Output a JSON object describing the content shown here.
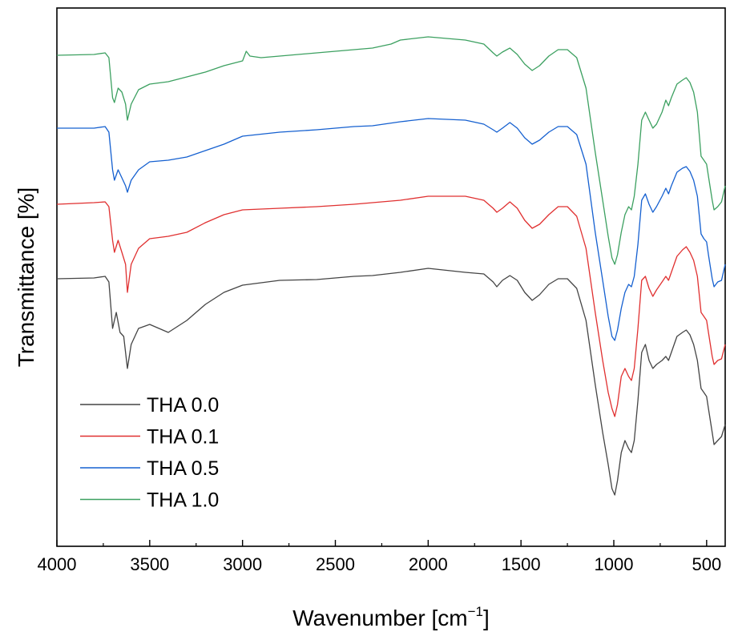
{
  "chart_data": {
    "type": "line",
    "title": "",
    "xlabel": "Wavenumber [cm",
    "xlabel_sup": "−1",
    "xlabel_end": "]",
    "ylabel": "Transmittance [%]",
    "xlim": [
      4000,
      400
    ],
    "x_reversed": true,
    "y_ticks_shown": false,
    "xticks": [
      4000,
      3500,
      3000,
      2500,
      2000,
      1500,
      1000,
      500
    ],
    "legend_position": "bottom-left",
    "grid": false,
    "series": [
      {
        "name": "THA 0.0",
        "color": "#444444",
        "points": [
          [
            4000,
            348
          ],
          [
            3800,
            347
          ],
          [
            3740,
            345
          ],
          [
            3720,
            352
          ],
          [
            3700,
            410
          ],
          [
            3680,
            390
          ],
          [
            3660,
            415
          ],
          [
            3640,
            420
          ],
          [
            3620,
            460
          ],
          [
            3600,
            430
          ],
          [
            3560,
            410
          ],
          [
            3500,
            405
          ],
          [
            3450,
            410
          ],
          [
            3400,
            415
          ],
          [
            3300,
            400
          ],
          [
            3200,
            380
          ],
          [
            3100,
            365
          ],
          [
            3000,
            356
          ],
          [
            2800,
            350
          ],
          [
            2600,
            349
          ],
          [
            2400,
            345
          ],
          [
            2300,
            344
          ],
          [
            2150,
            340
          ],
          [
            2000,
            335
          ],
          [
            1800,
            340
          ],
          [
            1700,
            342
          ],
          [
            1650,
            352
          ],
          [
            1630,
            358
          ],
          [
            1600,
            350
          ],
          [
            1560,
            344
          ],
          [
            1520,
            350
          ],
          [
            1480,
            365
          ],
          [
            1440,
            375
          ],
          [
            1400,
            368
          ],
          [
            1350,
            355
          ],
          [
            1300,
            348
          ],
          [
            1250,
            348
          ],
          [
            1200,
            360
          ],
          [
            1150,
            400
          ],
          [
            1100,
            480
          ],
          [
            1060,
            540
          ],
          [
            1030,
            580
          ],
          [
            1010,
            610
          ],
          [
            995,
            618
          ],
          [
            980,
            600
          ],
          [
            960,
            565
          ],
          [
            940,
            550
          ],
          [
            920,
            560
          ],
          [
            905,
            565
          ],
          [
            890,
            550
          ],
          [
            870,
            500
          ],
          [
            850,
            440
          ],
          [
            830,
            430
          ],
          [
            810,
            450
          ],
          [
            790,
            460
          ],
          [
            770,
            455
          ],
          [
            740,
            450
          ],
          [
            720,
            445
          ],
          [
            705,
            450
          ],
          [
            690,
            440
          ],
          [
            660,
            420
          ],
          [
            630,
            415
          ],
          [
            610,
            412
          ],
          [
            590,
            418
          ],
          [
            570,
            430
          ],
          [
            550,
            450
          ],
          [
            530,
            485
          ],
          [
            515,
            490
          ],
          [
            500,
            495
          ],
          [
            490,
            510
          ],
          [
            470,
            540
          ],
          [
            460,
            555
          ],
          [
            440,
            550
          ],
          [
            420,
            545
          ],
          [
            400,
            530
          ]
        ]
      },
      {
        "name": "THA 0.1",
        "color": "#e03030",
        "points": [
          [
            4000,
            255
          ],
          [
            3800,
            253
          ],
          [
            3740,
            252
          ],
          [
            3720,
            258
          ],
          [
            3700,
            300
          ],
          [
            3690,
            315
          ],
          [
            3670,
            300
          ],
          [
            3650,
            315
          ],
          [
            3630,
            330
          ],
          [
            3620,
            365
          ],
          [
            3600,
            330
          ],
          [
            3560,
            310
          ],
          [
            3500,
            298
          ],
          [
            3400,
            295
          ],
          [
            3300,
            290
          ],
          [
            3200,
            278
          ],
          [
            3100,
            268
          ],
          [
            3000,
            262
          ],
          [
            2800,
            260
          ],
          [
            2600,
            258
          ],
          [
            2400,
            255
          ],
          [
            2300,
            253
          ],
          [
            2150,
            250
          ],
          [
            2000,
            245
          ],
          [
            1800,
            245
          ],
          [
            1700,
            250
          ],
          [
            1650,
            260
          ],
          [
            1630,
            265
          ],
          [
            1600,
            260
          ],
          [
            1560,
            252
          ],
          [
            1520,
            260
          ],
          [
            1480,
            275
          ],
          [
            1440,
            285
          ],
          [
            1400,
            280
          ],
          [
            1350,
            268
          ],
          [
            1300,
            258
          ],
          [
            1250,
            258
          ],
          [
            1200,
            270
          ],
          [
            1150,
            310
          ],
          [
            1100,
            390
          ],
          [
            1060,
            450
          ],
          [
            1030,
            490
          ],
          [
            1010,
            510
          ],
          [
            995,
            520
          ],
          [
            980,
            505
          ],
          [
            960,
            470
          ],
          [
            940,
            460
          ],
          [
            920,
            470
          ],
          [
            905,
            475
          ],
          [
            890,
            460
          ],
          [
            870,
            410
          ],
          [
            850,
            350
          ],
          [
            830,
            345
          ],
          [
            810,
            360
          ],
          [
            790,
            370
          ],
          [
            770,
            362
          ],
          [
            740,
            352
          ],
          [
            720,
            345
          ],
          [
            705,
            350
          ],
          [
            690,
            340
          ],
          [
            660,
            320
          ],
          [
            630,
            312
          ],
          [
            610,
            308
          ],
          [
            590,
            315
          ],
          [
            570,
            325
          ],
          [
            550,
            345
          ],
          [
            530,
            390
          ],
          [
            515,
            395
          ],
          [
            500,
            400
          ],
          [
            490,
            415
          ],
          [
            470,
            445
          ],
          [
            460,
            455
          ],
          [
            440,
            450
          ],
          [
            420,
            448
          ],
          [
            400,
            430
          ]
        ]
      },
      {
        "name": "THA 0.5",
        "color": "#1560d0",
        "points": [
          [
            4000,
            160
          ],
          [
            3800,
            160
          ],
          [
            3740,
            158
          ],
          [
            3720,
            165
          ],
          [
            3700,
            212
          ],
          [
            3690,
            225
          ],
          [
            3670,
            212
          ],
          [
            3650,
            222
          ],
          [
            3630,
            232
          ],
          [
            3620,
            240
          ],
          [
            3600,
            225
          ],
          [
            3560,
            212
          ],
          [
            3500,
            202
          ],
          [
            3400,
            200
          ],
          [
            3300,
            196
          ],
          [
            3200,
            188
          ],
          [
            3100,
            180
          ],
          [
            3000,
            170
          ],
          [
            2800,
            165
          ],
          [
            2600,
            162
          ],
          [
            2400,
            158
          ],
          [
            2300,
            157
          ],
          [
            2150,
            152
          ],
          [
            2000,
            148
          ],
          [
            1800,
            150
          ],
          [
            1700,
            155
          ],
          [
            1650,
            162
          ],
          [
            1630,
            165
          ],
          [
            1600,
            160
          ],
          [
            1560,
            153
          ],
          [
            1520,
            160
          ],
          [
            1480,
            172
          ],
          [
            1440,
            180
          ],
          [
            1400,
            175
          ],
          [
            1350,
            165
          ],
          [
            1300,
            158
          ],
          [
            1250,
            158
          ],
          [
            1200,
            168
          ],
          [
            1150,
            205
          ],
          [
            1100,
            290
          ],
          [
            1060,
            350
          ],
          [
            1030,
            395
          ],
          [
            1010,
            420
          ],
          [
            995,
            425
          ],
          [
            980,
            412
          ],
          [
            960,
            385
          ],
          [
            940,
            365
          ],
          [
            920,
            355
          ],
          [
            905,
            358
          ],
          [
            890,
            345
          ],
          [
            870,
            305
          ],
          [
            850,
            250
          ],
          [
            830,
            242
          ],
          [
            810,
            255
          ],
          [
            790,
            265
          ],
          [
            770,
            258
          ],
          [
            740,
            245
          ],
          [
            720,
            235
          ],
          [
            705,
            242
          ],
          [
            690,
            232
          ],
          [
            660,
            215
          ],
          [
            630,
            210
          ],
          [
            610,
            208
          ],
          [
            590,
            214
          ],
          [
            570,
            225
          ],
          [
            550,
            245
          ],
          [
            530,
            292
          ],
          [
            515,
            298
          ],
          [
            500,
            302
          ],
          [
            490,
            318
          ],
          [
            470,
            348
          ],
          [
            460,
            358
          ],
          [
            440,
            352
          ],
          [
            420,
            350
          ],
          [
            400,
            330
          ]
        ]
      },
      {
        "name": "THA 1.0",
        "color": "#3ca060",
        "points": [
          [
            4000,
            69
          ],
          [
            3800,
            68
          ],
          [
            3740,
            66
          ],
          [
            3720,
            72
          ],
          [
            3700,
            122
          ],
          [
            3690,
            128
          ],
          [
            3670,
            110
          ],
          [
            3650,
            115
          ],
          [
            3630,
            130
          ],
          [
            3620,
            150
          ],
          [
            3600,
            130
          ],
          [
            3560,
            112
          ],
          [
            3500,
            105
          ],
          [
            3400,
            102
          ],
          [
            3300,
            96
          ],
          [
            3200,
            90
          ],
          [
            3100,
            82
          ],
          [
            3000,
            76
          ],
          [
            2980,
            64
          ],
          [
            2960,
            70
          ],
          [
            2900,
            72
          ],
          [
            2800,
            70
          ],
          [
            2600,
            66
          ],
          [
            2400,
            62
          ],
          [
            2300,
            60
          ],
          [
            2200,
            55
          ],
          [
            2150,
            50
          ],
          [
            2000,
            46
          ],
          [
            1800,
            50
          ],
          [
            1700,
            55
          ],
          [
            1650,
            66
          ],
          [
            1630,
            70
          ],
          [
            1600,
            65
          ],
          [
            1560,
            60
          ],
          [
            1520,
            68
          ],
          [
            1480,
            80
          ],
          [
            1440,
            88
          ],
          [
            1400,
            82
          ],
          [
            1350,
            70
          ],
          [
            1300,
            62
          ],
          [
            1250,
            62
          ],
          [
            1200,
            72
          ],
          [
            1150,
            110
          ],
          [
            1100,
            190
          ],
          [
            1060,
            250
          ],
          [
            1030,
            295
          ],
          [
            1010,
            322
          ],
          [
            995,
            330
          ],
          [
            980,
            318
          ],
          [
            960,
            290
          ],
          [
            940,
            268
          ],
          [
            920,
            258
          ],
          [
            905,
            262
          ],
          [
            890,
            245
          ],
          [
            870,
            205
          ],
          [
            850,
            150
          ],
          [
            830,
            140
          ],
          [
            810,
            150
          ],
          [
            790,
            160
          ],
          [
            770,
            155
          ],
          [
            740,
            140
          ],
          [
            720,
            125
          ],
          [
            705,
            132
          ],
          [
            690,
            122
          ],
          [
            660,
            105
          ],
          [
            630,
            100
          ],
          [
            610,
            97
          ],
          [
            590,
            103
          ],
          [
            570,
            115
          ],
          [
            550,
            140
          ],
          [
            530,
            195
          ],
          [
            515,
            200
          ],
          [
            500,
            205
          ],
          [
            490,
            220
          ],
          [
            470,
            250
          ],
          [
            460,
            262
          ],
          [
            440,
            258
          ],
          [
            420,
            252
          ],
          [
            400,
            232
          ]
        ]
      }
    ]
  }
}
